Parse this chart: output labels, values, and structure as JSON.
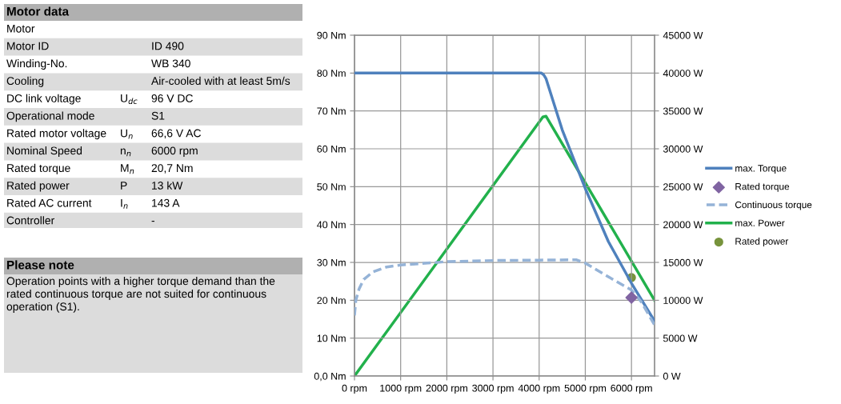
{
  "chart_data": [
    {
      "type": "other",
      "title": "Motor data",
      "annotations": [
        "Motor",
        null,
        null,
        "Motor ID",
        null,
        "ID 490",
        "Winding-No.",
        null,
        "WB 340",
        "Cooling",
        null,
        "Air-cooled with at least 5m/s",
        "DC link voltage",
        "U$_{dc}$",
        "96 V DC",
        "Operational mode",
        null,
        "S1",
        "Rated motor voltage",
        "U$_{n}$",
        "66,6 V AC",
        "Nominal Speed",
        "n$_{n}$",
        "6000 rpm",
        "Rated torque",
        "M$_{n}$",
        "20,7 Nm",
        "Rated power",
        "P",
        "13 kW",
        "Rated AC current",
        "I$_{n}$",
        "143 A",
        "Controller",
        null,
        "-"
      ]
    },
    {
      "type": "other",
      "title": "Please note",
      "annotations": [
        "Operation points with a higher torque demand than the rated continuous torque are not suited for continuous operation (S1)."
      ]
    },
    {
      "type": "line",
      "grid": true,
      "legend": "right",
      "xlim": [
        0,
        6500
      ],
      "xticks": [
        {
          "value": 0,
          "label": "0 rpm"
        },
        {
          "value": 1000,
          "label": "1000 rpm"
        },
        {
          "value": 2000,
          "label": "2000 rpm"
        },
        {
          "value": 3000,
          "label": "3000 rpm"
        },
        {
          "value": 4000,
          "label": "4000 rpm"
        },
        {
          "value": 5000,
          "label": "5000 rpm"
        },
        {
          "value": 6000,
          "label": "6000 rpm"
        }
      ],
      "ylim": [
        0,
        90
      ],
      "yticks": [
        {
          "value": 0,
          "label": "0,0 Nm"
        },
        {
          "value": 10,
          "label": "10 Nm"
        },
        {
          "value": 20,
          "label": "20 Nm"
        },
        {
          "value": 30,
          "label": "30 Nm"
        },
        {
          "value": 40,
          "label": "40 Nm"
        },
        {
          "value": 50,
          "label": "50 Nm"
        },
        {
          "value": 60,
          "label": "60 Nm"
        },
        {
          "value": 70,
          "label": "70 Nm"
        },
        {
          "value": 80,
          "label": "80 Nm"
        },
        {
          "value": 90,
          "label": "90 Nm"
        }
      ],
      "y2lim": [
        0,
        45000
      ],
      "y2ticks": [
        {
          "value": 0,
          "label": "0 W"
        },
        {
          "value": 5000,
          "label": "5000 W"
        },
        {
          "value": 10000,
          "label": "10000 W"
        },
        {
          "value": 15000,
          "label": "15000 W"
        },
        {
          "value": 20000,
          "label": "20000 W"
        },
        {
          "value": 25000,
          "label": "25000 W"
        },
        {
          "value": 30000,
          "label": "30000 W"
        },
        {
          "value": 35000,
          "label": "35000 W"
        },
        {
          "value": 40000,
          "label": "40000 W"
        },
        {
          "value": 45000,
          "label": "45000 W"
        }
      ],
      "series": [
        {
          "name": "max. Torque",
          "type": "line",
          "color": "#4f81bd",
          "line_style": "solid",
          "marker": "none",
          "x": [
            0,
            4050,
            4100,
            4150,
            4500,
            5000,
            5500,
            6000,
            6500
          ],
          "values": [
            80,
            80,
            79.5,
            78.5,
            65,
            49.5,
            35.5,
            24.5,
            14.5
          ]
        },
        {
          "name": "Rated torque",
          "type": "scatter",
          "color": "#8064a2",
          "marker": "diamond",
          "x": [
            6000
          ],
          "values": [
            20.7
          ]
        },
        {
          "name": "Continuous torque",
          "type": "line",
          "color": "#95b3d7",
          "line_style": "dashed",
          "marker": "none",
          "x": [
            0,
            30,
            100,
            200,
            400,
            700,
            1000,
            2000,
            3000,
            4000,
            4800,
            5000,
            5500,
            6000,
            6200,
            6500
          ],
          "values": [
            16,
            20,
            23,
            25.5,
            27.5,
            28.8,
            29.3,
            30.2,
            30.5,
            30.6,
            30.7,
            29.8,
            26.2,
            22.7,
            19.8,
            13.5
          ]
        },
        {
          "name": "max. Power",
          "type": "line",
          "axis": "y2",
          "color": "#22b14c",
          "line_style": "solid",
          "marker": "none",
          "x": [
            0,
            4080,
            4150,
            6500
          ],
          "values": [
            0,
            34200,
            34300,
            10000
          ]
        },
        {
          "name": "Rated power",
          "type": "scatter",
          "axis": "y2",
          "color": "#77933c",
          "marker": "circle",
          "x": [
            6000
          ],
          "values": [
            13000
          ]
        }
      ]
    }
  ]
}
